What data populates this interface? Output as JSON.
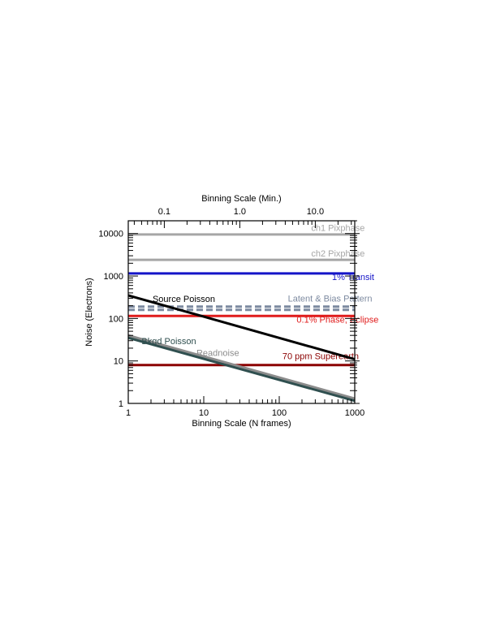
{
  "chart_data": {
    "type": "line",
    "x_scale": "log",
    "y_scale": "log",
    "xlim": [
      1,
      1000
    ],
    "ylim": [
      1,
      20000
    ],
    "xlabel": "Binning Scale (N frames)",
    "ylabel": "Noise (Electrons)",
    "top_axis_label": "Binning Scale (Min.)",
    "x_ticks": [
      {
        "v": 1,
        "label": "1"
      },
      {
        "v": 10,
        "label": "10"
      },
      {
        "v": 100,
        "label": "100"
      },
      {
        "v": 1000,
        "label": "1000"
      }
    ],
    "y_ticks": [
      {
        "v": 1,
        "label": "1"
      },
      {
        "v": 10,
        "label": "10"
      },
      {
        "v": 100,
        "label": "100"
      },
      {
        "v": 1000,
        "label": "1000"
      },
      {
        "v": 10000,
        "label": "10000"
      }
    ],
    "top_ticks": [
      {
        "v": 0.1,
        "label": "0.1"
      },
      {
        "v": 1.0,
        "label": "1.0"
      },
      {
        "v": 10.0,
        "label": "10.0"
      }
    ],
    "minutes_per_frame": 0.0333,
    "series": [
      {
        "name": "ch1 Pixphase",
        "color": "#a6a6a6",
        "x": [
          1,
          1000
        ],
        "y": [
          9500,
          9500
        ],
        "width": 3,
        "dash": "",
        "label_x": 265,
        "label_y": 11500
      },
      {
        "name": "ch2 Pixphase",
        "color": "#a6a6a6",
        "x": [
          1,
          1000
        ],
        "y": [
          2400,
          2400
        ],
        "width": 3,
        "dash": "",
        "label_x": 265,
        "label_y": 2900
      },
      {
        "name": "1% Transit",
        "color": "#1515c8",
        "x": [
          1,
          1000
        ],
        "y": [
          1150,
          1150
        ],
        "width": 3,
        "dash": "",
        "label_x": 500,
        "label_y": 800
      },
      {
        "name": "Latent & Bias Pattern",
        "color": "#7d8aa0",
        "x": [
          1,
          1000
        ],
        "y": [
          190,
          190
        ],
        "width": 3,
        "dash": "8,4",
        "label_x": 130,
        "label_y": 250
      },
      {
        "name": "",
        "color": "#7d8aa0",
        "x": [
          1,
          1000
        ],
        "y": [
          160,
          160
        ],
        "width": 3,
        "dash": "8,4",
        "label_x": null,
        "label_y": null
      },
      {
        "name": "0.1% Phase,  Eclipse",
        "color": "#e01b1b",
        "x": [
          1,
          1000
        ],
        "y": [
          115,
          115
        ],
        "width": 3,
        "dash": "",
        "label_x": 170,
        "label_y": 80
      },
      {
        "name": "70 ppm Superearth",
        "color": "#8b0000",
        "x": [
          1,
          1000
        ],
        "y": [
          8,
          8
        ],
        "width": 3,
        "dash": "",
        "label_x": 110,
        "label_y": 11
      },
      {
        "name": "Source Poisson",
        "color": "#000000",
        "x": [
          1,
          1000
        ],
        "y": [
          350,
          11
        ],
        "width": 3,
        "dash": "",
        "label_x": 2.1,
        "label_y": 245
      },
      {
        "name": "Readnoise",
        "color": "#8c8c8c",
        "x": [
          1,
          1000
        ],
        "y": [
          40,
          1.3
        ],
        "width": 3,
        "dash": "",
        "label_x": 8,
        "label_y": 13
      },
      {
        "name": "Bkgd Poisson",
        "color": "#2f4f4f",
        "x": [
          1,
          1000
        ],
        "y": [
          35,
          1.15
        ],
        "width": 3,
        "dash": "",
        "label_x": 1.5,
        "label_y": 25
      }
    ]
  }
}
